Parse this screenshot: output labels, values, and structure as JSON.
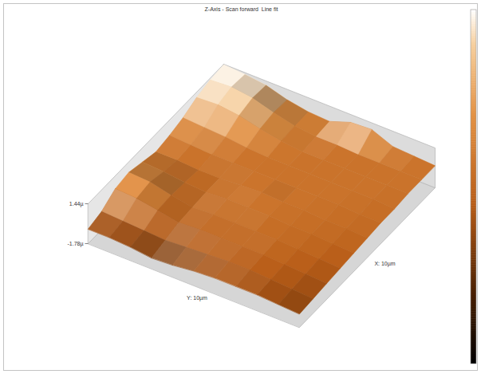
{
  "chart_data": {
    "type": "surface",
    "title": "Z-Axis - Scan forward  Line fit",
    "x_label": "X: 10µm",
    "y_label": "Y: 10µm",
    "x": [
      0,
      1,
      2,
      3,
      4,
      5,
      6,
      7,
      8,
      9,
      10
    ],
    "y": [
      0,
      1,
      2,
      3,
      4,
      5,
      6,
      7,
      8,
      9,
      10
    ],
    "z": [
      [
        -0.6,
        -0.3,
        0.4,
        0.6,
        0.3,
        0.0,
        0.2,
        0.5,
        1.0,
        1.3,
        1.4
      ],
      [
        -0.6,
        -0.4,
        0.3,
        0.5,
        0.2,
        0.0,
        0.1,
        0.4,
        1.1,
        1.4,
        1.3
      ],
      [
        -0.7,
        -0.5,
        0.0,
        0.1,
        0.0,
        -0.1,
        0.0,
        0.3,
        0.9,
        1.2,
        1.1
      ],
      [
        -0.9,
        -0.6,
        -0.3,
        -0.2,
        -0.1,
        -0.1,
        0.0,
        0.1,
        0.5,
        0.7,
        0.6
      ],
      [
        -0.8,
        -0.5,
        -0.2,
        -0.1,
        0.0,
        0.0,
        0.0,
        0.0,
        0.2,
        0.3,
        0.3
      ],
      [
        -0.6,
        -0.4,
        -0.2,
        -0.1,
        0.0,
        0.1,
        0.0,
        0.0,
        0.0,
        0.1,
        0.2
      ],
      [
        -0.5,
        -0.3,
        -0.2,
        -0.1,
        0.0,
        0.0,
        0.0,
        0.0,
        0.0,
        0.1,
        0.8
      ],
      [
        -0.5,
        -0.3,
        -0.2,
        -0.1,
        -0.1,
        0.0,
        0.0,
        0.0,
        0.0,
        0.0,
        0.9
      ],
      [
        -0.5,
        -0.4,
        -0.3,
        -0.2,
        -0.1,
        -0.1,
        0.0,
        0.0,
        0.0,
        0.0,
        0.2
      ],
      [
        -0.6,
        -0.5,
        -0.4,
        -0.3,
        -0.2,
        -0.1,
        -0.1,
        0.0,
        0.0,
        0.0,
        0.1
      ],
      [
        -0.7,
        -0.6,
        -0.5,
        -0.4,
        -0.3,
        -0.2,
        -0.1,
        -0.1,
        0.0,
        0.0,
        0.0
      ]
    ],
    "xlim": [
      0,
      10
    ],
    "ylim": [
      0,
      10
    ],
    "zlim": [
      -1.78,
      1.44
    ],
    "zticks": [
      {
        "value": 1.44,
        "label": "1.44µ"
      },
      {
        "value": -1.78,
        "label": "-1.78µ"
      }
    ],
    "colorbar": {
      "range": [
        -1.78,
        1.44
      ]
    }
  }
}
